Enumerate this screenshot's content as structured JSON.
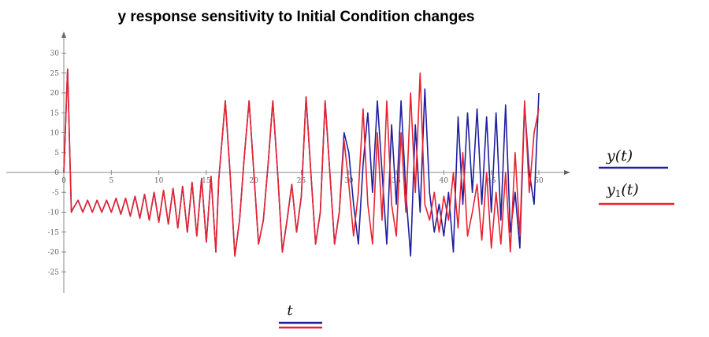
{
  "chart_data": {
    "type": "line",
    "title": "y response sensitivity to Initial Condition changes",
    "xlabel": "t",
    "ylabel": "",
    "xlim": [
      0,
      50
    ],
    "ylim": [
      -30,
      35
    ],
    "x_ticks": [
      0,
      5,
      10,
      15,
      20,
      25,
      30,
      35,
      40,
      45,
      50
    ],
    "y_ticks": [
      -25,
      -20,
      -15,
      -10,
      -5,
      0,
      5,
      10,
      15,
      20,
      25,
      30
    ],
    "grid": false,
    "legend_position": "right",
    "series": [
      {
        "name": "y(t)",
        "color": "#1f1f9f",
        "description": "chaotic oscillation; diverges from y1(t) after t≈29",
        "points": [
          [
            0,
            0
          ],
          [
            0.4,
            26
          ],
          [
            0.8,
            -10
          ],
          [
            1,
            -9
          ],
          [
            1.5,
            -7
          ],
          [
            2,
            -10
          ],
          [
            2.5,
            -7
          ],
          [
            3,
            -10
          ],
          [
            3.5,
            -7
          ],
          [
            4,
            -10
          ],
          [
            4.5,
            -7
          ],
          [
            5,
            -10
          ],
          [
            5.5,
            -6.5
          ],
          [
            6,
            -10.5
          ],
          [
            6.5,
            -6.5
          ],
          [
            7,
            -11
          ],
          [
            7.5,
            -6
          ],
          [
            8,
            -11.5
          ],
          [
            8.5,
            -5.5
          ],
          [
            9,
            -12
          ],
          [
            9.5,
            -5
          ],
          [
            10,
            -12.5
          ],
          [
            10.5,
            -4.5
          ],
          [
            11,
            -13
          ],
          [
            11.5,
            -4
          ],
          [
            12,
            -14
          ],
          [
            12.5,
            -3.5
          ],
          [
            13,
            -15
          ],
          [
            13.5,
            -2.5
          ],
          [
            14,
            -16
          ],
          [
            14.5,
            -1.5
          ],
          [
            15,
            -17.5
          ],
          [
            15.5,
            -1
          ],
          [
            16,
            -20
          ],
          [
            16.3,
            -2
          ],
          [
            17,
            18
          ],
          [
            17.5,
            0
          ],
          [
            18,
            -21
          ],
          [
            18.5,
            -12
          ],
          [
            19,
            4
          ],
          [
            19.5,
            18
          ],
          [
            20,
            0
          ],
          [
            20.5,
            -18
          ],
          [
            21,
            -12
          ],
          [
            21.5,
            2
          ],
          [
            22,
            18
          ],
          [
            22.5,
            0
          ],
          [
            23,
            -20
          ],
          [
            23.5,
            -12
          ],
          [
            24,
            -3
          ],
          [
            24.5,
            -15
          ],
          [
            25,
            -6
          ],
          [
            25.5,
            19
          ],
          [
            26,
            0
          ],
          [
            26.5,
            -18
          ],
          [
            27,
            -10
          ],
          [
            27.5,
            18
          ],
          [
            28,
            0
          ],
          [
            28.5,
            -18
          ],
          [
            29,
            -10
          ],
          [
            29.5,
            10
          ],
          [
            30,
            5
          ],
          [
            30.5,
            -8
          ],
          [
            31,
            -18
          ],
          [
            31.5,
            2
          ],
          [
            32,
            15
          ],
          [
            32.5,
            -5
          ],
          [
            33,
            18
          ],
          [
            33.5,
            0
          ],
          [
            34,
            -18
          ],
          [
            34.5,
            12
          ],
          [
            35,
            -8
          ],
          [
            35.5,
            18
          ],
          [
            36,
            -5
          ],
          [
            36.5,
            -21
          ],
          [
            37,
            12
          ],
          [
            37.5,
            -10
          ],
          [
            38,
            21
          ],
          [
            38.5,
            -5
          ],
          [
            39,
            -15
          ],
          [
            39.5,
            -8
          ],
          [
            40,
            -16
          ],
          [
            40.5,
            -5
          ],
          [
            41,
            -20
          ],
          [
            41.5,
            14
          ],
          [
            42,
            -8
          ],
          [
            42.5,
            15
          ],
          [
            43,
            -5
          ],
          [
            43.5,
            16
          ],
          [
            44,
            -8
          ],
          [
            44.5,
            14
          ],
          [
            45,
            -10
          ],
          [
            45.5,
            15
          ],
          [
            46,
            -12
          ],
          [
            46.5,
            17
          ],
          [
            47,
            -15
          ],
          [
            47.5,
            -5
          ],
          [
            48,
            -19
          ],
          [
            48.5,
            17
          ],
          [
            49,
            0
          ],
          [
            49.5,
            -8
          ],
          [
            50,
            20
          ]
        ]
      },
      {
        "name": "y1(t)",
        "color": "#e8232f",
        "description": "perturbed initial condition; tracks y(t) closely until t≈29",
        "points": [
          [
            0,
            0
          ],
          [
            0.4,
            26
          ],
          [
            0.8,
            -10
          ],
          [
            1,
            -9
          ],
          [
            1.5,
            -7
          ],
          [
            2,
            -10
          ],
          [
            2.5,
            -7
          ],
          [
            3,
            -10
          ],
          [
            3.5,
            -7
          ],
          [
            4,
            -10
          ],
          [
            4.5,
            -7
          ],
          [
            5,
            -10
          ],
          [
            5.5,
            -6.5
          ],
          [
            6,
            -10.5
          ],
          [
            6.5,
            -6.5
          ],
          [
            7,
            -11
          ],
          [
            7.5,
            -6
          ],
          [
            8,
            -11.5
          ],
          [
            8.5,
            -5.5
          ],
          [
            9,
            -12
          ],
          [
            9.5,
            -5
          ],
          [
            10,
            -12.5
          ],
          [
            10.5,
            -4.5
          ],
          [
            11,
            -13
          ],
          [
            11.5,
            -4
          ],
          [
            12,
            -14
          ],
          [
            12.5,
            -3.5
          ],
          [
            13,
            -15
          ],
          [
            13.5,
            -2.5
          ],
          [
            14,
            -16
          ],
          [
            14.5,
            -1.5
          ],
          [
            15,
            -17.5
          ],
          [
            15.5,
            -1
          ],
          [
            16,
            -20
          ],
          [
            16.3,
            -2
          ],
          [
            17,
            18
          ],
          [
            17.5,
            0
          ],
          [
            18,
            -21
          ],
          [
            18.5,
            -12
          ],
          [
            19,
            4
          ],
          [
            19.5,
            18
          ],
          [
            20,
            0
          ],
          [
            20.5,
            -18
          ],
          [
            21,
            -12
          ],
          [
            21.5,
            2
          ],
          [
            22,
            18
          ],
          [
            22.5,
            0
          ],
          [
            23,
            -20
          ],
          [
            23.5,
            -12
          ],
          [
            24,
            -3
          ],
          [
            24.5,
            -15
          ],
          [
            25,
            -6
          ],
          [
            25.5,
            19
          ],
          [
            26,
            0
          ],
          [
            26.5,
            -18
          ],
          [
            27,
            -10
          ],
          [
            27.5,
            18
          ],
          [
            28,
            0
          ],
          [
            28.5,
            -18
          ],
          [
            29,
            -10
          ],
          [
            29.5,
            8
          ],
          [
            30,
            -3
          ],
          [
            30.5,
            -16
          ],
          [
            31,
            -5
          ],
          [
            31.5,
            16
          ],
          [
            32,
            -8
          ],
          [
            32.5,
            -18
          ],
          [
            33,
            10
          ],
          [
            33.5,
            -12
          ],
          [
            34,
            18
          ],
          [
            34.5,
            -8
          ],
          [
            35,
            -16
          ],
          [
            35.5,
            10
          ],
          [
            36,
            -10
          ],
          [
            36.5,
            20
          ],
          [
            37,
            -5
          ],
          [
            37.5,
            25
          ],
          [
            38,
            -8
          ],
          [
            38.5,
            -12
          ],
          [
            39,
            -5
          ],
          [
            39.5,
            -15
          ],
          [
            40,
            -6
          ],
          [
            40.5,
            -12
          ],
          [
            41,
            0
          ],
          [
            41.5,
            -14
          ],
          [
            42,
            5
          ],
          [
            42.5,
            -16
          ],
          [
            43,
            -10
          ],
          [
            43.5,
            -3
          ],
          [
            44,
            -17
          ],
          [
            44.5,
            0
          ],
          [
            45,
            -19
          ],
          [
            45.5,
            -5
          ],
          [
            46,
            -18
          ],
          [
            46.5,
            0
          ],
          [
            47,
            -20
          ],
          [
            47.5,
            5
          ],
          [
            48,
            -16
          ],
          [
            48.5,
            18
          ],
          [
            49,
            -5
          ],
          [
            49.5,
            10
          ],
          [
            50,
            16
          ]
        ]
      }
    ]
  }
}
